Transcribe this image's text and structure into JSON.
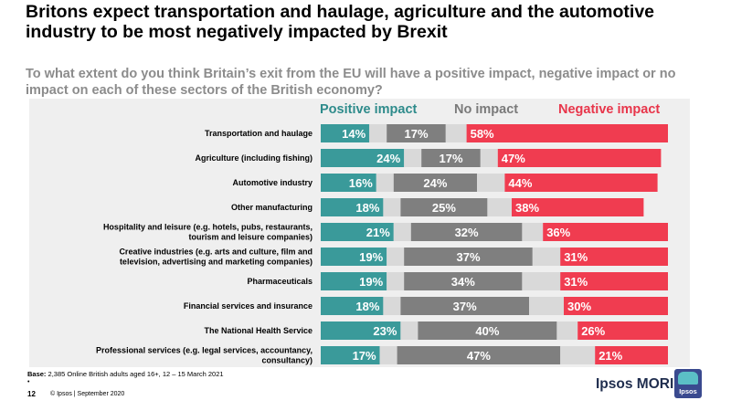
{
  "title": "Britons expect transportation and haulage, agriculture and the automotive industry to be most negatively impacted by Brexit",
  "subtitle": "To what extent do you think Britain’s exit from the EU will have a positive impact, negative impact or no impact on each of these sectors of the British economy?",
  "legend": {
    "positive": "Positive impact",
    "none": "No impact",
    "negative": "Negative impact"
  },
  "colors": {
    "positive": "#3a9a9a",
    "none": "#7f7f7f",
    "negative": "#f03c50",
    "dontknow": "#d9d9d9",
    "positive_label": "#2e8b8b",
    "none_label": "#7a7a7a",
    "negative_label": "#e8354a"
  },
  "chart_data": {
    "type": "bar",
    "stacked": true,
    "orientation": "horizontal",
    "categories": [
      "Transportation and haulage",
      "Agriculture (including fishing)",
      "Automotive industry",
      "Other manufacturing",
      "Hospitality and leisure (e.g. hotels, pubs, restaurants, tourism and leisure companies)",
      "Creative industries (e.g. arts and culture, film and television, advertising and marketing companies)",
      "Pharmaceuticals",
      "Financial services and insurance",
      "The National Health Service",
      "Professional services (e.g. legal services, accountancy, consultancy)"
    ],
    "series": [
      {
        "name": "Positive impact",
        "values": [
          14,
          24,
          16,
          18,
          21,
          19,
          19,
          18,
          23,
          17
        ]
      },
      {
        "values": [
          5,
          5,
          5,
          5,
          5,
          5,
          5,
          5,
          5,
          5
        ]
      },
      {
        "name": "No impact",
        "values": [
          17,
          17,
          24,
          25,
          32,
          37,
          34,
          37,
          40,
          47
        ]
      },
      {
        "values": [
          6,
          5,
          8,
          7,
          6,
          8,
          11,
          10,
          6,
          10
        ]
      },
      {
        "name": "Negative impact",
        "values": [
          58,
          47,
          44,
          38,
          36,
          31,
          31,
          30,
          26,
          21
        ]
      }
    ],
    "xlim": [
      0,
      100
    ]
  },
  "footer": {
    "base_label": "Base:",
    "base_text": "2,385 Online British adults aged 16+, 12 – 15 March 2021",
    "dot": "•",
    "page_number": "12",
    "copyright": "© Ipsos | September 2020",
    "brand": "Ipsos MORI",
    "logo_text": "Ipsos"
  }
}
